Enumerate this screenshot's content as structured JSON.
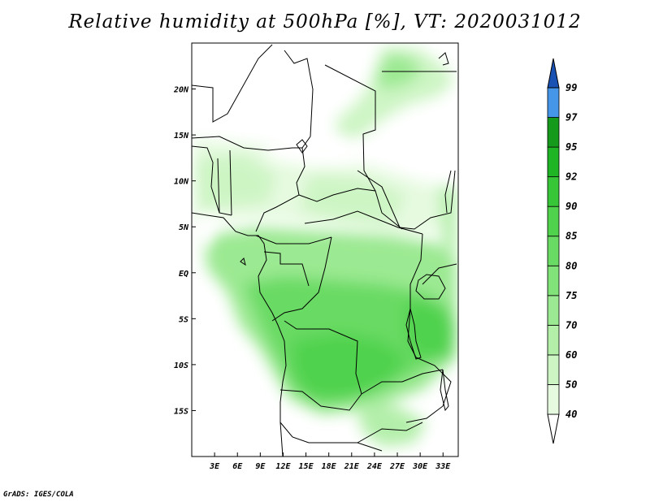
{
  "title": "Relative humidity at 500hPa [%], VT: 2020031012",
  "credit": "GrADS: IGES/COLA",
  "map": {
    "lon_range": [
      0,
      35
    ],
    "lat_range": [
      -20,
      25
    ],
    "lat_ticks": [
      {
        "lat": 20,
        "label": "20N"
      },
      {
        "lat": 15,
        "label": "15N"
      },
      {
        "lat": 10,
        "label": "10N"
      },
      {
        "lat": 5,
        "label": "5N"
      },
      {
        "lat": 0,
        "label": "EQ"
      },
      {
        "lat": -5,
        "label": "5S"
      },
      {
        "lat": -10,
        "label": "10S"
      },
      {
        "lat": -15,
        "label": "15S"
      }
    ],
    "lon_ticks": [
      {
        "lon": 3,
        "label": "3E"
      },
      {
        "lon": 6,
        "label": "6E"
      },
      {
        "lon": 9,
        "label": "9E"
      },
      {
        "lon": 12,
        "label": "12E"
      },
      {
        "lon": 15,
        "label": "15E"
      },
      {
        "lon": 18,
        "label": "18E"
      },
      {
        "lon": 21,
        "label": "21E"
      },
      {
        "lon": 24,
        "label": "24E"
      },
      {
        "lon": 27,
        "label": "27E"
      },
      {
        "lon": 30,
        "label": "30E"
      },
      {
        "lon": 33,
        "label": "33E"
      }
    ]
  },
  "colorbar": {
    "levels": [
      "40",
      "50",
      "60",
      "70",
      "75",
      "80",
      "85",
      "90",
      "92",
      "95",
      "97",
      "99"
    ],
    "colors": [
      "#e6fae0",
      "#cdf5c4",
      "#b4efaa",
      "#9be992",
      "#82e27a",
      "#69da63",
      "#50d24d",
      "#37c638",
      "#1fb525",
      "#169a1c",
      "#4596e8",
      "#2a72d6",
      "#1a52b4"
    ]
  }
}
